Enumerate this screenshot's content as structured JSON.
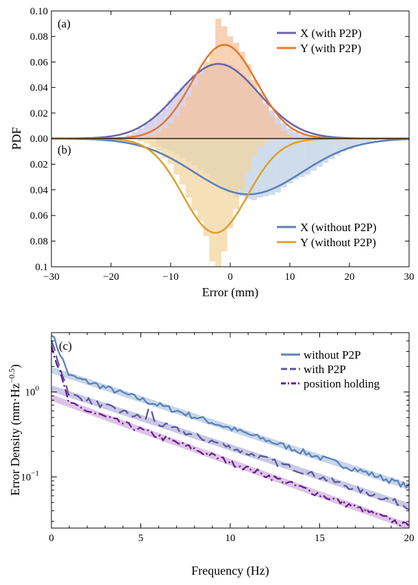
{
  "chart_data": [
    {
      "type": "area",
      "panel": "(a)",
      "ylabel": "PDF",
      "xlim": [
        -30,
        30
      ],
      "ylim": [
        0,
        0.1
      ],
      "yticks": [
        "0.00",
        "0.02",
        "0.04",
        "0.06",
        "0.08",
        "0.10"
      ],
      "legend_position": "top-right",
      "colors": {
        "x": "#6a63a8",
        "y": "#e8772a",
        "x_fill": "#c9c6e6",
        "y_fill": "#f4c39c"
      },
      "series": [
        {
          "name": "X (with P2P)",
          "mean": -2.0,
          "sd": 6.8,
          "peak": 0.0585
        },
        {
          "name": "Y (with P2P)",
          "mean": -1.0,
          "sd": 5.4,
          "peak": 0.0735
        }
      ],
      "histogram_bin_width": 1,
      "histogram_x": {
        "bins": [
          -17,
          -16,
          -15,
          -14,
          -13,
          -12,
          -11,
          -10,
          -9,
          -8,
          -7,
          -6,
          -5,
          -4,
          -3,
          -2,
          -1,
          0,
          1,
          2,
          3,
          4,
          5,
          6,
          7,
          8,
          9,
          10,
          11,
          12,
          13,
          14
        ],
        "values": [
          0.003,
          0.005,
          0.008,
          0.012,
          0.016,
          0.02,
          0.024,
          0.03,
          0.036,
          0.04,
          0.044,
          0.05,
          0.053,
          0.056,
          0.058,
          0.06,
          0.059,
          0.058,
          0.055,
          0.05,
          0.046,
          0.04,
          0.034,
          0.028,
          0.022,
          0.017,
          0.012,
          0.008,
          0.005,
          0.003,
          0.002,
          0.001
        ]
      },
      "histogram_y": {
        "bins": [
          -15,
          -14,
          -13,
          -12,
          -11,
          -10,
          -9,
          -8,
          -7,
          -6,
          -5,
          -4,
          -3,
          -2,
          -1,
          0,
          1,
          2,
          3,
          4,
          5,
          6,
          7,
          8,
          9,
          10,
          11
        ],
        "values": [
          0.001,
          0.002,
          0.003,
          0.005,
          0.008,
          0.012,
          0.018,
          0.025,
          0.033,
          0.042,
          0.05,
          0.06,
          0.068,
          0.094,
          0.088,
          0.08,
          0.075,
          0.068,
          0.058,
          0.046,
          0.036,
          0.026,
          0.018,
          0.011,
          0.006,
          0.003,
          0.001
        ]
      }
    },
    {
      "type": "area",
      "panel": "(b)",
      "xlabel": "Error (mm)",
      "xlim": [
        -30,
        30
      ],
      "ylim": [
        0,
        0.1
      ],
      "inverted": true,
      "xticks": [
        "−30",
        "−20",
        "−10",
        "0",
        "10",
        "20",
        "30"
      ],
      "yticks": [
        "0.02",
        "0.04",
        "0.06",
        "0.08",
        "0.1"
      ],
      "legend_position": "bottom-right",
      "colors": {
        "x": "#5a80b8",
        "y": "#e0a02a",
        "x_fill": "#bfd0e6",
        "y_fill": "#f2d6a0"
      },
      "series": [
        {
          "name": "X (without P2P)",
          "mean": 3.0,
          "sd": 9.0,
          "peak": 0.0435
        },
        {
          "name": "Y (without P2P)",
          "mean": -2.5,
          "sd": 5.4,
          "peak": 0.0735
        }
      ],
      "histogram_bin_width": 1,
      "histogram_x": {
        "bins": [
          -12,
          -11,
          -10,
          -9,
          -8,
          -7,
          -6,
          -5,
          -4,
          -3,
          -2,
          -1,
          0,
          1,
          2,
          3,
          4,
          5,
          6,
          7,
          8,
          9,
          10,
          11,
          12,
          13,
          14,
          15,
          16,
          17,
          18,
          19,
          20,
          21,
          22,
          23,
          24
        ],
        "values": [
          0.006,
          0.008,
          0.01,
          0.012,
          0.015,
          0.018,
          0.021,
          0.024,
          0.028,
          0.032,
          0.036,
          0.04,
          0.043,
          0.046,
          0.045,
          0.047,
          0.048,
          0.046,
          0.045,
          0.044,
          0.042,
          0.038,
          0.035,
          0.032,
          0.03,
          0.028,
          0.025,
          0.022,
          0.019,
          0.016,
          0.013,
          0.01,
          0.008,
          0.006,
          0.004,
          0.003,
          0.002
        ]
      },
      "histogram_y": {
        "bins": [
          -15,
          -14,
          -13,
          -12,
          -11,
          -10,
          -9,
          -8,
          -7,
          -6,
          -5,
          -4,
          -3,
          -2,
          -1,
          0,
          1,
          2,
          3,
          4,
          5,
          6,
          7
        ],
        "values": [
          0.002,
          0.004,
          0.007,
          0.01,
          0.015,
          0.02,
          0.028,
          0.036,
          0.046,
          0.056,
          0.064,
          0.076,
          0.096,
          0.1,
          0.088,
          0.07,
          0.055,
          0.04,
          0.026,
          0.014,
          0.007,
          0.003,
          0.001
        ]
      }
    },
    {
      "type": "line",
      "panel": "(c)",
      "xlabel": "Frequency (Hz)",
      "ylabel": "Error Density (mm·Hz",
      "ylabel_sup": "−0.5",
      "ylabel_close": ")",
      "xlim": [
        0,
        20
      ],
      "ylim": [
        0.025,
        5
      ],
      "log_y": true,
      "xticks": [
        "0",
        "5",
        "10",
        "15",
        "20"
      ],
      "yticks": [
        {
          "base": "10",
          "exp": "0",
          "value": 1
        },
        {
          "base": "10",
          "exp": "−1",
          "value": 0.1
        }
      ],
      "legend_position": "top-right",
      "series": [
        {
          "name": "without P2P",
          "color": "#5a80b8",
          "dash": "none",
          "fit_color": "#c6d6ea",
          "fit": [
            1.55,
            0.077
          ],
          "start": 5.0
        },
        {
          "name": "with P2P",
          "color": "#5a56a0",
          "dash": "16,7",
          "fit_color": "#cbc8e6",
          "fit": [
            0.94,
            0.045
          ],
          "start": 4.0
        },
        {
          "name": "position holding",
          "color": "#6a1a8e",
          "dash": "12,4,2.5,4",
          "fit_color": "#dcc4e6",
          "fit": [
            0.72,
            0.026
          ],
          "start": 3.6
        }
      ]
    }
  ]
}
